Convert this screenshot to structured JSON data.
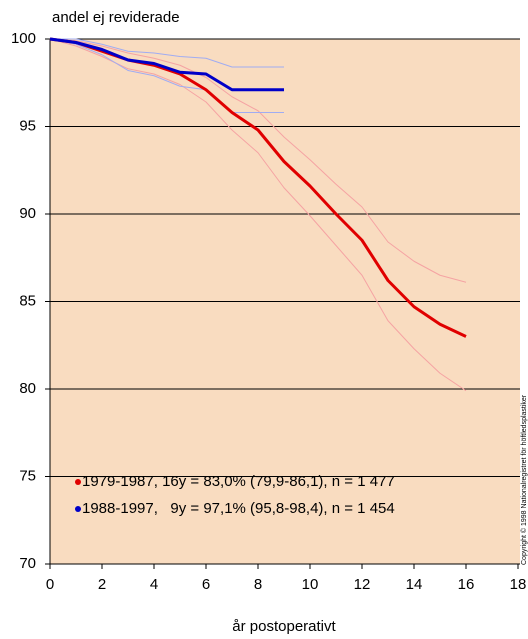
{
  "chart_data": {
    "type": "line",
    "ylabel": "andel ej reviderade",
    "xlabel": "år postoperativt",
    "note": "Copyright © 1998 Nationalregistret för höftledsplastiker",
    "x": [
      0,
      1,
      2,
      3,
      4,
      5,
      6,
      7,
      8,
      9,
      10,
      11,
      12,
      13,
      14,
      15,
      16
    ],
    "xlim": [
      0,
      18
    ],
    "xticks": [
      0,
      2,
      4,
      6,
      8,
      10,
      12,
      14,
      16,
      18
    ],
    "ylim": [
      70,
      100
    ],
    "yticks": [
      70,
      75,
      80,
      85,
      90,
      95,
      100
    ],
    "grid": true,
    "background": "#f9dcc0",
    "legend": "lower left",
    "series": [
      {
        "color": "#f5a3a3",
        "values": [
          100,
          99.9,
          99.6,
          99.2,
          98.9,
          98.5,
          97.8,
          96.7,
          95.9,
          94.4,
          93.1,
          91.7,
          90.4,
          88.4,
          87.3,
          86.5,
          86.1
        ]
      },
      {
        "color": "#f5a3a3",
        "values": [
          100,
          99.6,
          99.0,
          98.3,
          98.0,
          97.4,
          96.4,
          94.8,
          93.5,
          91.5,
          89.9,
          88.2,
          86.5,
          83.9,
          82.3,
          80.9,
          79.9
        ]
      },
      {
        "color": "#a0acf2",
        "values": [
          100,
          100,
          99.7,
          99.3,
          99.2,
          99.0,
          98.9,
          98.4,
          98.4,
          98.4,
          null,
          null,
          null,
          null,
          null,
          null,
          null
        ]
      },
      {
        "color": "#a0acf2",
        "values": [
          100,
          99.7,
          99.1,
          98.2,
          97.9,
          97.3,
          97.1,
          95.8,
          95.8,
          95.8,
          null,
          null,
          null,
          null,
          null,
          null,
          null
        ]
      },
      {
        "name": "1979-1987, 16y = 83,0% (79,9-86,1), n = 1 477",
        "color": "#e00000",
        "values": [
          100,
          99.8,
          99.3,
          98.8,
          98.5,
          98.0,
          97.1,
          95.8,
          94.8,
          93.0,
          91.6,
          90.0,
          88.5,
          86.2,
          84.7,
          83.7,
          83.0
        ]
      },
      {
        "name": "1988-1997,   9y = 97,1% (95,8-98,4), n = 1 454",
        "color": "#0000c8",
        "values": [
          100,
          99.8,
          99.4,
          98.8,
          98.6,
          98.1,
          98.0,
          97.1,
          97.1,
          97.1,
          null,
          null,
          null,
          null,
          null,
          null,
          null
        ]
      }
    ]
  }
}
